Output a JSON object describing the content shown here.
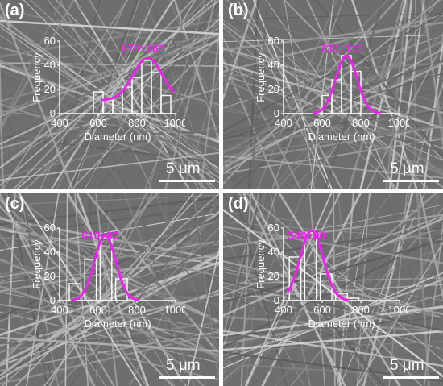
{
  "figure": {
    "colors": {
      "fit_curve": "#ee22ee",
      "bar_stroke": "#ffffff",
      "text": "#ffffff",
      "background": "#6e6e6e"
    }
  },
  "chart_data": [
    {
      "type": "bar",
      "panel_label": "(a)",
      "annotation": "870±160",
      "xlabel": "Diameter (nm)",
      "ylabel": "Frequency",
      "xlim": [
        400,
        1000
      ],
      "ylim": [
        0,
        60
      ],
      "xticks": [
        "400",
        "600",
        "800",
        "1000"
      ],
      "yticks": [
        "0",
        "20",
        "40",
        "60"
      ],
      "bin_width": 50,
      "x": [
        600,
        650,
        700,
        750,
        800,
        850,
        900,
        950
      ],
      "values": [
        18,
        11,
        13,
        22,
        30,
        44,
        34,
        15
      ],
      "fit": {
        "type": "gaussian",
        "mean": 855,
        "sigma": 75,
        "peak": 46,
        "baseline": 11
      },
      "scalebar": "5 μm"
    },
    {
      "type": "bar",
      "panel_label": "(b)",
      "annotation": "730±110",
      "xlabel": "Diameter (nm)",
      "ylabel": "Frequency",
      "xlim": [
        400,
        1000
      ],
      "ylim": [
        0,
        60
      ],
      "xticks": [
        "400",
        "600",
        "800",
        "1000"
      ],
      "yticks": [
        "0",
        "20",
        "40",
        "60"
      ],
      "bin_width": 50,
      "x": [
        625,
        675,
        725,
        775
      ],
      "values": [
        15,
        28,
        48,
        35
      ],
      "fit": {
        "type": "gaussian",
        "mean": 725,
        "sigma": 55,
        "peak": 48,
        "baseline": 0
      },
      "scalebar": "5 μm"
    },
    {
      "type": "bar",
      "panel_label": "(c)",
      "annotation": "610±90",
      "xlabel": "Diameter (nm)",
      "ylabel": "Frequency",
      "xlim": [
        400,
        1000
      ],
      "ylim": [
        0,
        60
      ],
      "xticks": [
        "400",
        "600",
        "800",
        "1000"
      ],
      "yticks": [
        "0",
        "20",
        "40",
        "60"
      ],
      "bin_width": 60,
      "x": [
        480,
        560,
        640,
        720
      ],
      "values": [
        14,
        34,
        52,
        18
      ],
      "fit": {
        "type": "gaussian",
        "mean": 635,
        "sigma": 55,
        "peak": 54,
        "baseline": 0
      },
      "scalebar": "5 μm"
    },
    {
      "type": "bar",
      "panel_label": "(d)",
      "annotation": "540±80",
      "xlabel": "Diameter (nm)",
      "ylabel": "Frequency",
      "xlim": [
        400,
        1000
      ],
      "ylim": [
        0,
        60
      ],
      "xticks": [
        "400",
        "600",
        "800",
        "1000"
      ],
      "yticks": [
        "0",
        "20",
        "40",
        "60"
      ],
      "bin_width": 60,
      "x": [
        460,
        540,
        620,
        700,
        760
      ],
      "values": [
        36,
        56,
        22,
        6,
        2
      ],
      "fit": {
        "type": "gaussian",
        "mean": 545,
        "sigma": 60,
        "peak": 58,
        "baseline": 0
      },
      "scalebar": "5 μm"
    }
  ]
}
